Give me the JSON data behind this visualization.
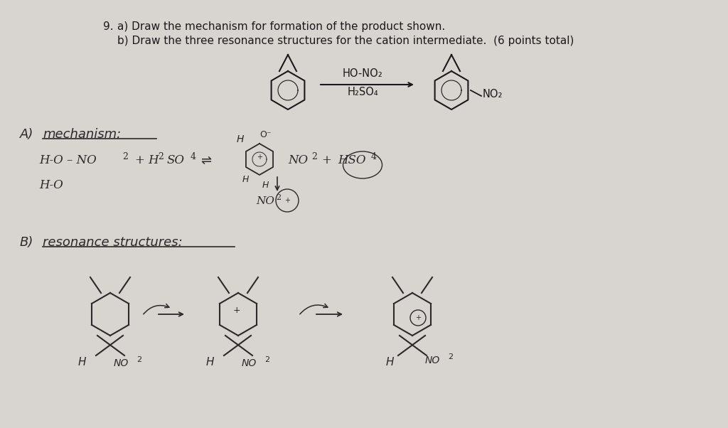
{
  "background_color": "#d8d4d0",
  "title_number": "9.",
  "question_a": "a) Draw the mechanism for formation of the product shown.",
  "question_b": "b) Draw the three resonance structures for the cation intermediate.  (6 points total)",
  "reaction_reagent_top": "HO-NO₂",
  "reaction_reagent_bottom": "H₂SO₄",
  "product_label": "NO₂",
  "text_color": "#1a1a1a",
  "handwriting_color": "#2a2a2a"
}
